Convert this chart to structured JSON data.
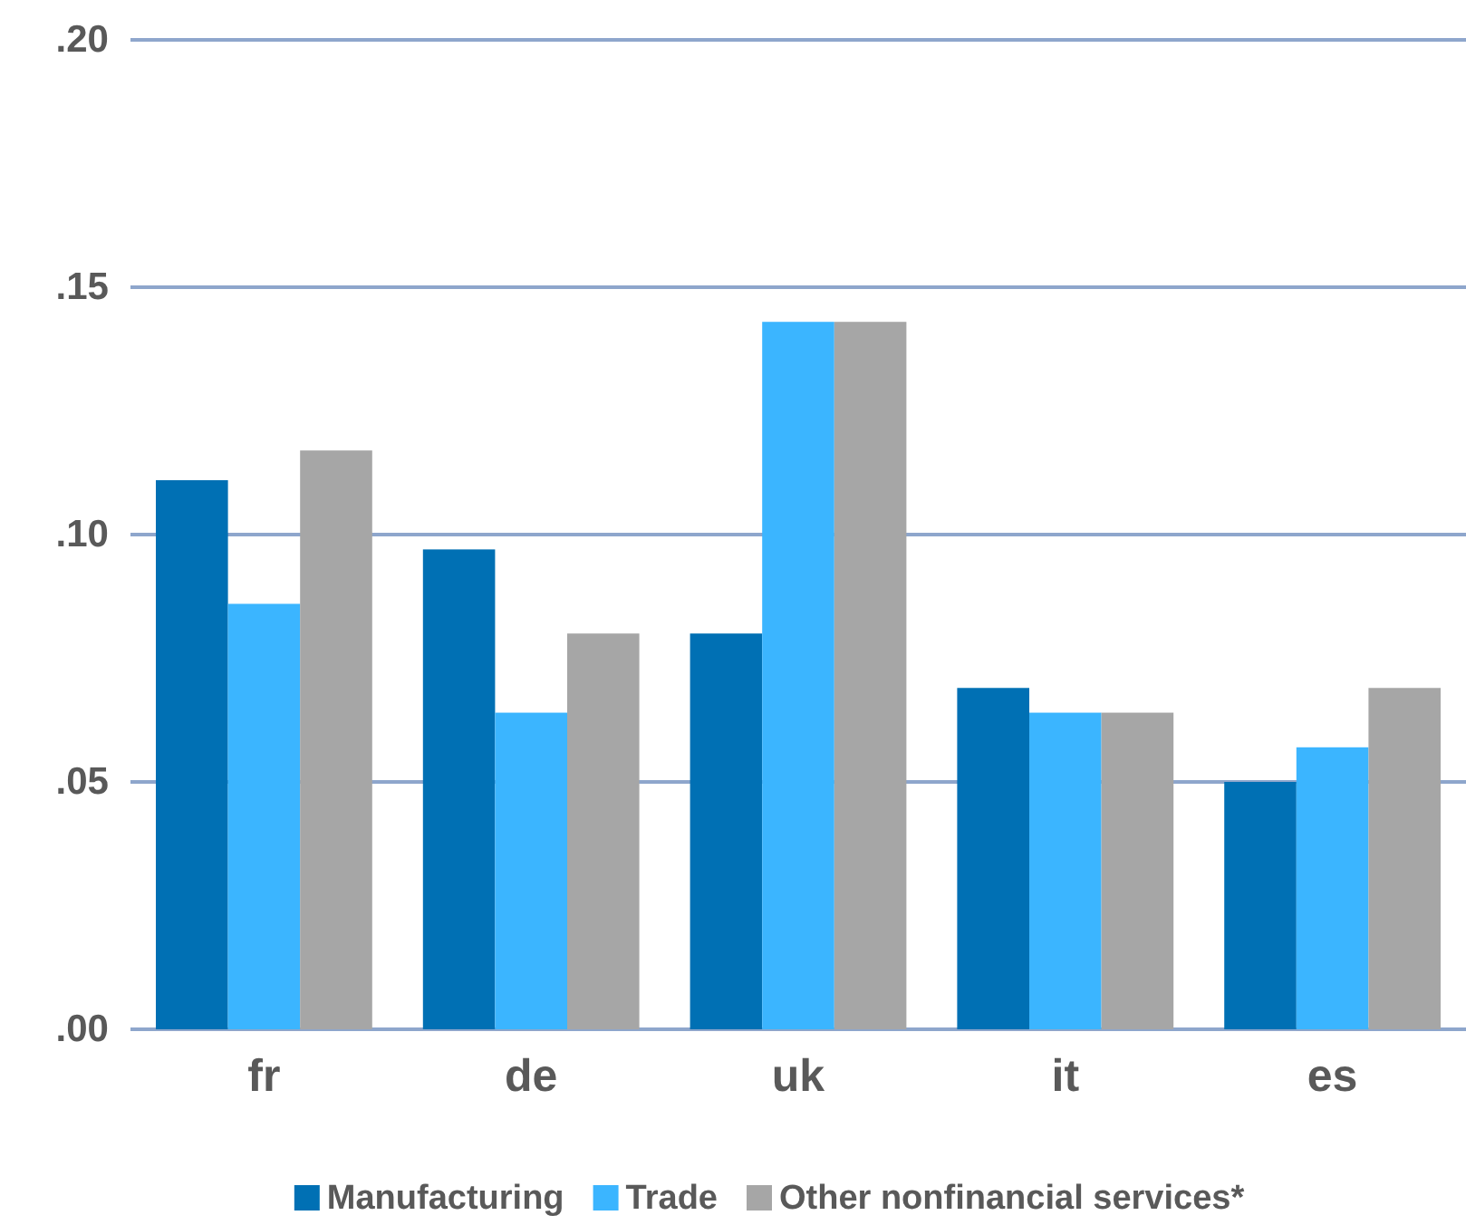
{
  "chart_data": {
    "type": "bar",
    "categories": [
      "fr",
      "de",
      "uk",
      "it",
      "es"
    ],
    "series": [
      {
        "name": "Manufacturing",
        "color": "#0070b4",
        "values": [
          0.111,
          0.097,
          0.08,
          0.069,
          0.05
        ]
      },
      {
        "name": "Trade",
        "color": "#3bb5ff",
        "values": [
          0.086,
          0.064,
          0.143,
          0.064,
          0.057
        ]
      },
      {
        "name": "Other nonfinancial services*",
        "color": "#a6a6a6",
        "values": [
          0.117,
          0.08,
          0.143,
          0.064,
          0.069
        ]
      }
    ],
    "ylim": [
      0,
      0.2
    ],
    "yticks": [
      {
        "value": 0,
        "label": ".00"
      },
      {
        "value": 0.05,
        "label": ".05"
      },
      {
        "value": 0.1,
        "label": ".10"
      },
      {
        "value": 0.15,
        "label": ".15"
      },
      {
        "value": 0.2,
        "label": ".20"
      }
    ],
    "grid": "y",
    "legend": "bottom"
  }
}
